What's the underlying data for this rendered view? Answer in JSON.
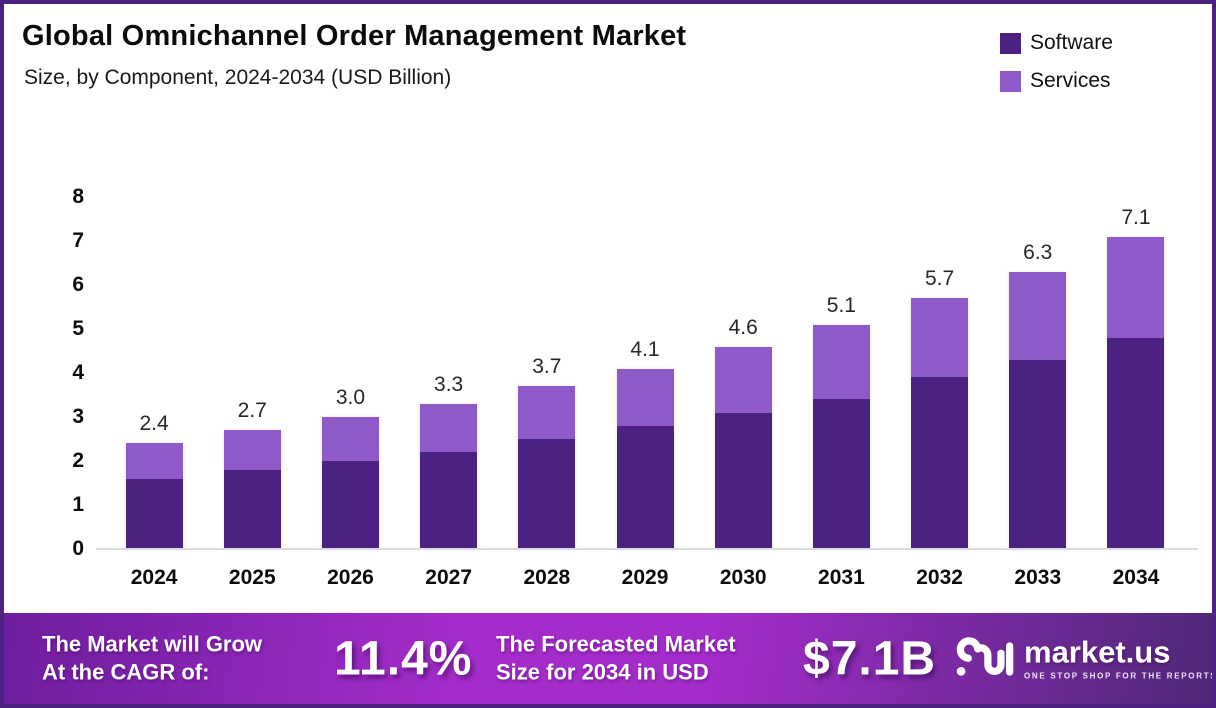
{
  "header": {
    "title": "Global Omnichannel Order Management Market",
    "subtitle": "Size, by Component, 2024-2034 (USD Billion)"
  },
  "chart_data": {
    "type": "bar",
    "stacked": true,
    "title": "Global Omnichannel Order Management Market Size, by Component, 2024-2034 (USD Billion)",
    "categories": [
      "2024",
      "2025",
      "2026",
      "2027",
      "2028",
      "2029",
      "2030",
      "2031",
      "2032",
      "2033",
      "2034"
    ],
    "series": [
      {
        "name": "Software",
        "color": "#4B2182",
        "values": [
          1.6,
          1.8,
          2.0,
          2.2,
          2.5,
          2.8,
          3.1,
          3.4,
          3.9,
          4.3,
          4.8
        ]
      },
      {
        "name": "Services",
        "color": "#9059C9",
        "values": [
          0.8,
          0.9,
          1.0,
          1.1,
          1.2,
          1.3,
          1.5,
          1.7,
          1.8,
          2.0,
          2.3
        ]
      }
    ],
    "totals": [
      2.4,
      2.7,
      3.0,
      3.3,
      3.7,
      4.1,
      4.6,
      5.1,
      5.7,
      6.3,
      7.1
    ],
    "total_labels": [
      "2.4",
      "2.7",
      "3.0",
      "3.3",
      "3.7",
      "4.1",
      "4.6",
      "5.1",
      "5.7",
      "6.3",
      "7.1"
    ],
    "xlabel": "",
    "ylabel": "",
    "ylim": [
      0,
      8
    ],
    "yticks": [
      0,
      1,
      2,
      3,
      4,
      5,
      6,
      7,
      8
    ],
    "grid": false,
    "legend_position": "top-right"
  },
  "footer": {
    "cagr_line1": "The Market will Grow",
    "cagr_line2": "At the CAGR of:",
    "cagr_value": "11.4%",
    "forecast_line1": "The Forecasted Market",
    "forecast_line2": "Size for 2034 in USD",
    "forecast_value": "$7.1B",
    "brand_name": "market.us",
    "brand_tagline": "ONE STOP SHOP FOR THE REPORTS"
  },
  "colors": {
    "software": "#4B2182",
    "services": "#9059C9",
    "border": "#4B2182",
    "baseline": "#dcdcdc",
    "banner_edge_left": "#6E1E9E",
    "banner_center": "#A42CCB",
    "banner_edge_right": "#4E2878"
  }
}
